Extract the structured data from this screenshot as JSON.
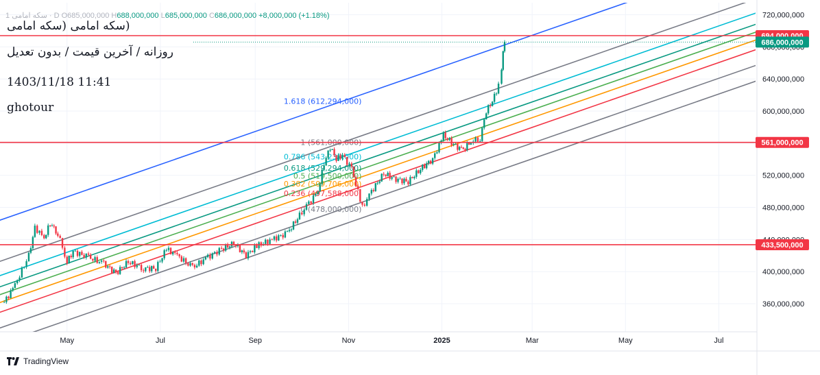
{
  "header": {
    "symbol_line": "1 سکه امامی · D",
    "open_label": "O",
    "open": "685,000,000",
    "high_label": "H",
    "high": "688,000,000",
    "low_label": "L",
    "low": "685,000,000",
    "close_label": "C",
    "close": "686,000,000",
    "change": "+8,000,000 (+1.18%)"
  },
  "notes": {
    "title": "(سکه امامی (سکه امامی",
    "subtitle": "روزانه / آخرین قیمت / بدون تعدیل",
    "datetime": "1403/11/18 11:41",
    "author": "ghotour"
  },
  "footer": {
    "brand": "TradingView"
  },
  "colors": {
    "up": "#089981",
    "down": "#f23645",
    "hline": "#f23645",
    "accent": "#2962ff",
    "current_price_tag": "#089981",
    "grid": "#f0f3fa",
    "axis_text": "#131722"
  },
  "chart_data": {
    "type": "candlestick",
    "y_axis": {
      "range": [
        325000000,
        735000000
      ],
      "ticks": [
        "720,000,000",
        "680,000,000",
        "640,000,000",
        "600,000,000",
        "560,000,000",
        "520,000,000",
        "480,000,000",
        "440,000,000",
        "400,000,000",
        "360,000,000"
      ],
      "tick_values": [
        720000000,
        680000000,
        640000000,
        600000000,
        560000000,
        520000000,
        480000000,
        440000000,
        400000000,
        360000000
      ]
    },
    "x_axis": {
      "range": [
        "2024-03-20",
        "2025-07-25"
      ],
      "ticks": [
        {
          "label": "May",
          "date": "2024-05-01"
        },
        {
          "label": "Jul",
          "date": "2024-07-01"
        },
        {
          "label": "Sep",
          "date": "2024-09-01"
        },
        {
          "label": "Nov",
          "date": "2024-11-01"
        },
        {
          "label": "2025",
          "date": "2025-01-01"
        },
        {
          "label": "Mar",
          "date": "2025-03-01"
        },
        {
          "label": "May",
          "date": "2025-05-01"
        },
        {
          "label": "Jul",
          "date": "2025-07-01"
        }
      ]
    },
    "horizontal_lines": [
      {
        "value": 694000000,
        "label": "694,000,000"
      },
      {
        "value": 561000000,
        "label": "561,000,000"
      },
      {
        "value": 433500000,
        "label": "433,500,000"
      }
    ],
    "current_price": {
      "value": 686000000,
      "label": "686,000,000"
    },
    "fib_channel": {
      "base_start": {
        "date": "2024-03-23",
        "value": 333000000
      },
      "base_end": {
        "date": "2024-10-28",
        "value": 478000000
      },
      "levels": [
        {
          "level": -0.236,
          "color": "#787b86",
          "label": ""
        },
        {
          "level": 0,
          "color": "#787b86",
          "label": "0 (478,000,000)"
        },
        {
          "level": 0.236,
          "color": "#f23645",
          "label": "0.236 (497,588,000)"
        },
        {
          "level": 0.382,
          "color": "#ff9800",
          "label": "0.382 (509,706,000)"
        },
        {
          "level": 0.5,
          "color": "#4caf50",
          "label": "0.5 (519,500,000)"
        },
        {
          "level": 0.618,
          "color": "#089981",
          "label": "0.618 (529,294,000)"
        },
        {
          "level": 0.786,
          "color": "#00bcd4",
          "label": "0.786 (543,238,000)"
        },
        {
          "level": 1,
          "color": "#787b86",
          "label": "1 (561,000,000)"
        },
        {
          "level": 1.618,
          "color": "#2962ff",
          "label": "1.618 (612,294,000)"
        }
      ]
    },
    "price_series": [
      {
        "date": "2024-03-21",
        "value": 362000000
      },
      {
        "date": "2024-03-28",
        "value": 383000000
      },
      {
        "date": "2024-04-06",
        "value": 420000000
      },
      {
        "date": "2024-04-10",
        "value": 455000000
      },
      {
        "date": "2024-04-16",
        "value": 442000000
      },
      {
        "date": "2024-04-20",
        "value": 460000000
      },
      {
        "date": "2024-04-25",
        "value": 448000000
      },
      {
        "date": "2024-05-01",
        "value": 412000000
      },
      {
        "date": "2024-05-05",
        "value": 425000000
      },
      {
        "date": "2024-05-15",
        "value": 418000000
      },
      {
        "date": "2024-05-25",
        "value": 410000000
      },
      {
        "date": "2024-06-02",
        "value": 398000000
      },
      {
        "date": "2024-06-10",
        "value": 412000000
      },
      {
        "date": "2024-06-20",
        "value": 404000000
      },
      {
        "date": "2024-06-28",
        "value": 404000000
      },
      {
        "date": "2024-07-05",
        "value": 428000000
      },
      {
        "date": "2024-07-12",
        "value": 420000000
      },
      {
        "date": "2024-07-22",
        "value": 405000000
      },
      {
        "date": "2024-08-01",
        "value": 418000000
      },
      {
        "date": "2024-08-10",
        "value": 428000000
      },
      {
        "date": "2024-08-18",
        "value": 435000000
      },
      {
        "date": "2024-08-26",
        "value": 420000000
      },
      {
        "date": "2024-09-02",
        "value": 432000000
      },
      {
        "date": "2024-09-12",
        "value": 440000000
      },
      {
        "date": "2024-09-22",
        "value": 448000000
      },
      {
        "date": "2024-09-30",
        "value": 470000000
      },
      {
        "date": "2024-10-06",
        "value": 485000000
      },
      {
        "date": "2024-10-12",
        "value": 500000000
      },
      {
        "date": "2024-10-16",
        "value": 535000000
      },
      {
        "date": "2024-10-20",
        "value": 555000000
      },
      {
        "date": "2024-10-24",
        "value": 540000000
      },
      {
        "date": "2024-10-28",
        "value": 545000000
      },
      {
        "date": "2024-11-03",
        "value": 528000000
      },
      {
        "date": "2024-11-10",
        "value": 480000000
      },
      {
        "date": "2024-11-16",
        "value": 500000000
      },
      {
        "date": "2024-11-24",
        "value": 522000000
      },
      {
        "date": "2024-12-02",
        "value": 515000000
      },
      {
        "date": "2024-12-10",
        "value": 512000000
      },
      {
        "date": "2024-12-18",
        "value": 528000000
      },
      {
        "date": "2024-12-26",
        "value": 540000000
      },
      {
        "date": "2025-01-02",
        "value": 570000000
      },
      {
        "date": "2025-01-10",
        "value": 556000000
      },
      {
        "date": "2025-01-15",
        "value": 552000000
      },
      {
        "date": "2025-01-20",
        "value": 562000000
      },
      {
        "date": "2025-01-26",
        "value": 566000000
      },
      {
        "date": "2025-01-30",
        "value": 600000000
      },
      {
        "date": "2025-02-03",
        "value": 612000000
      },
      {
        "date": "2025-02-07",
        "value": 632000000
      },
      {
        "date": "2025-02-09",
        "value": 648000000
      },
      {
        "date": "2025-02-10",
        "value": 672000000
      },
      {
        "date": "2025-02-11",
        "value": 686000000
      }
    ]
  }
}
